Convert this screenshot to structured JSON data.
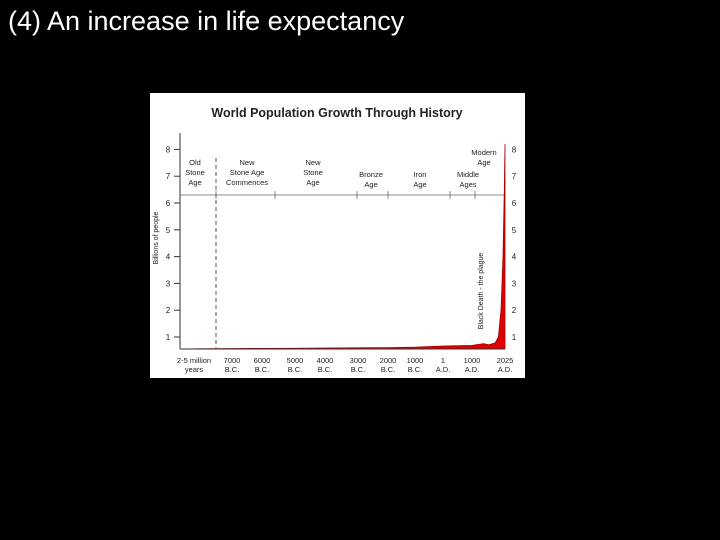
{
  "slide": {
    "title": "(4) An increase in life expectancy"
  },
  "colors": {
    "background": "#000000",
    "title_text": "#ffffff",
    "chart_bg": "#ffffff",
    "area_fill": "#e00000",
    "axis": "#333333"
  },
  "chart_data": {
    "type": "area",
    "title": "World Population Growth Through History",
    "ylabel": "Billions of people",
    "xlabel": "",
    "ylim": [
      0,
      8
    ],
    "y_ticks": [
      "1",
      "2",
      "3",
      "4",
      "5",
      "6",
      "7",
      "8"
    ],
    "x_ticks": [
      {
        "line1": "2-5 million",
        "line2": "years"
      },
      {
        "line1": "7000",
        "line2": "B.C."
      },
      {
        "line1": "6000",
        "line2": "B.C."
      },
      {
        "line1": "5000",
        "line2": "B.C."
      },
      {
        "line1": "4000",
        "line2": "B.C."
      },
      {
        "line1": "3000",
        "line2": "B.C."
      },
      {
        "line1": "2000",
        "line2": "B.C."
      },
      {
        "line1": "1000",
        "line2": "B.C."
      },
      {
        "line1": "1",
        "line2": "A.D."
      },
      {
        "line1": "1000",
        "line2": "A.D."
      },
      {
        "line1": "2025",
        "line2": "A.D."
      }
    ],
    "series": [
      {
        "name": "World population",
        "x_index": [
          0,
          1,
          2,
          3,
          4,
          5,
          6,
          7,
          8,
          9,
          9.35,
          9.5,
          9.7,
          9.8,
          9.88,
          9.94,
          9.98,
          10
        ],
        "values": [
          0.02,
          0.04,
          0.05,
          0.06,
          0.08,
          0.1,
          0.12,
          0.15,
          0.25,
          0.3,
          0.45,
          0.35,
          0.5,
          1.0,
          2.0,
          4.0,
          6.5,
          8.2
        ]
      }
    ],
    "eras": [
      {
        "lines": [
          "Old",
          "Stone",
          "Age"
        ]
      },
      {
        "lines": [
          "New",
          "Stone Age",
          "Commences"
        ]
      },
      {
        "lines": [
          "New",
          "Stone",
          "Age"
        ]
      },
      {
        "lines": [
          "Bronze",
          "Age"
        ]
      },
      {
        "lines": [
          "Iron",
          "Age"
        ]
      },
      {
        "lines": [
          "Middle",
          "Ages"
        ]
      },
      {
        "lines": [
          "Modern",
          "Age"
        ]
      }
    ],
    "annotations": [
      {
        "text": "Black Death - the plague"
      }
    ]
  }
}
